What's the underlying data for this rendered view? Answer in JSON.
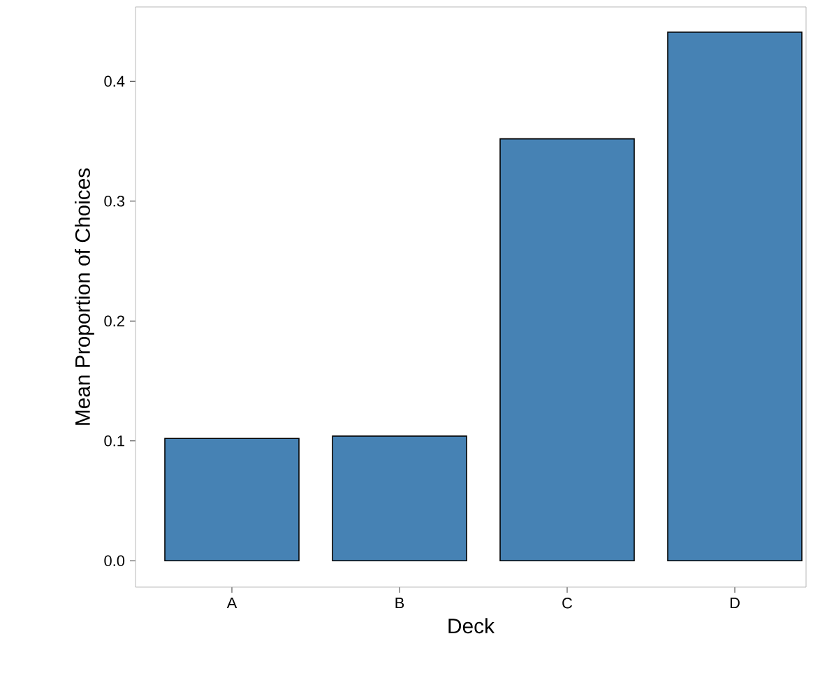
{
  "chart_data": {
    "type": "bar",
    "xlabel": "Deck",
    "ylabel": "Mean Proportion of Choices",
    "categories": [
      "A",
      "B",
      "C",
      "D"
    ],
    "values": [
      0.102,
      0.104,
      0.352,
      0.441
    ],
    "color": "#4682b4",
    "ylim": [
      -0.022,
      0.462
    ],
    "yticks": [
      {
        "value": 0,
        "label": "0.0"
      },
      {
        "value": 0.1,
        "label": "0.1"
      },
      {
        "value": 0.2,
        "label": "0.2"
      },
      {
        "value": 0.3,
        "label": "0.3"
      },
      {
        "value": 0.4,
        "label": "0.4"
      }
    ],
    "grid": false
  }
}
